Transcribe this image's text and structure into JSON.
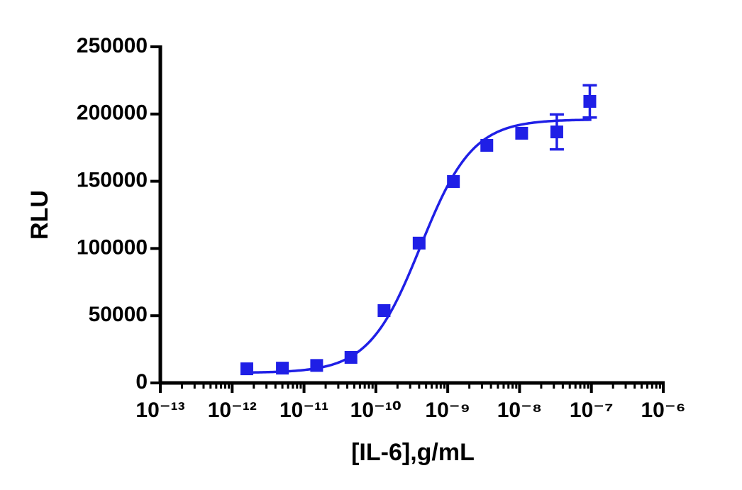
{
  "chart_data": {
    "type": "scatter",
    "x_label": "[IL-6],g/mL",
    "y_label": "RLU",
    "log_x": true,
    "xlim": [
      1e-13,
      1e-06
    ],
    "xticks": [
      {
        "value": 1e-13,
        "label": "10⁻¹³"
      },
      {
        "value": 1e-12,
        "label": "10⁻¹²"
      },
      {
        "value": 1e-11,
        "label": "10⁻¹¹"
      },
      {
        "value": 1e-10,
        "label": "10⁻¹⁰"
      },
      {
        "value": 1e-09,
        "label": "10⁻⁹"
      },
      {
        "value": 1e-08,
        "label": "10⁻⁸"
      },
      {
        "value": 1e-07,
        "label": "10⁻⁷"
      },
      {
        "value": 1e-06,
        "label": "10⁻⁶"
      }
    ],
    "minor_ticks": true,
    "ylim": [
      0,
      250000
    ],
    "yticks": [
      0,
      50000,
      100000,
      150000,
      200000,
      250000
    ],
    "color": "#1f1fe6",
    "x": [
      1.6e-12,
      5e-12,
      1.5e-11,
      4.5e-11,
      1.3e-10,
      4e-10,
      1.2e-09,
      3.5e-09,
      1.07e-08,
      3.3e-08,
      9.5e-08
    ],
    "values": [
      10500,
      11000,
      13000,
      19000,
      53800,
      104000,
      149800,
      176700,
      185700,
      186700,
      209400
    ],
    "errors": [
      null,
      null,
      null,
      null,
      null,
      null,
      null,
      null,
      null,
      13000,
      12000
    ],
    "fit": {
      "bottom": 7500,
      "top": 196000,
      "ec50": 4.2e-10,
      "hill": 1.2,
      "x_range": [
        1.4e-12,
        1e-07
      ]
    }
  }
}
